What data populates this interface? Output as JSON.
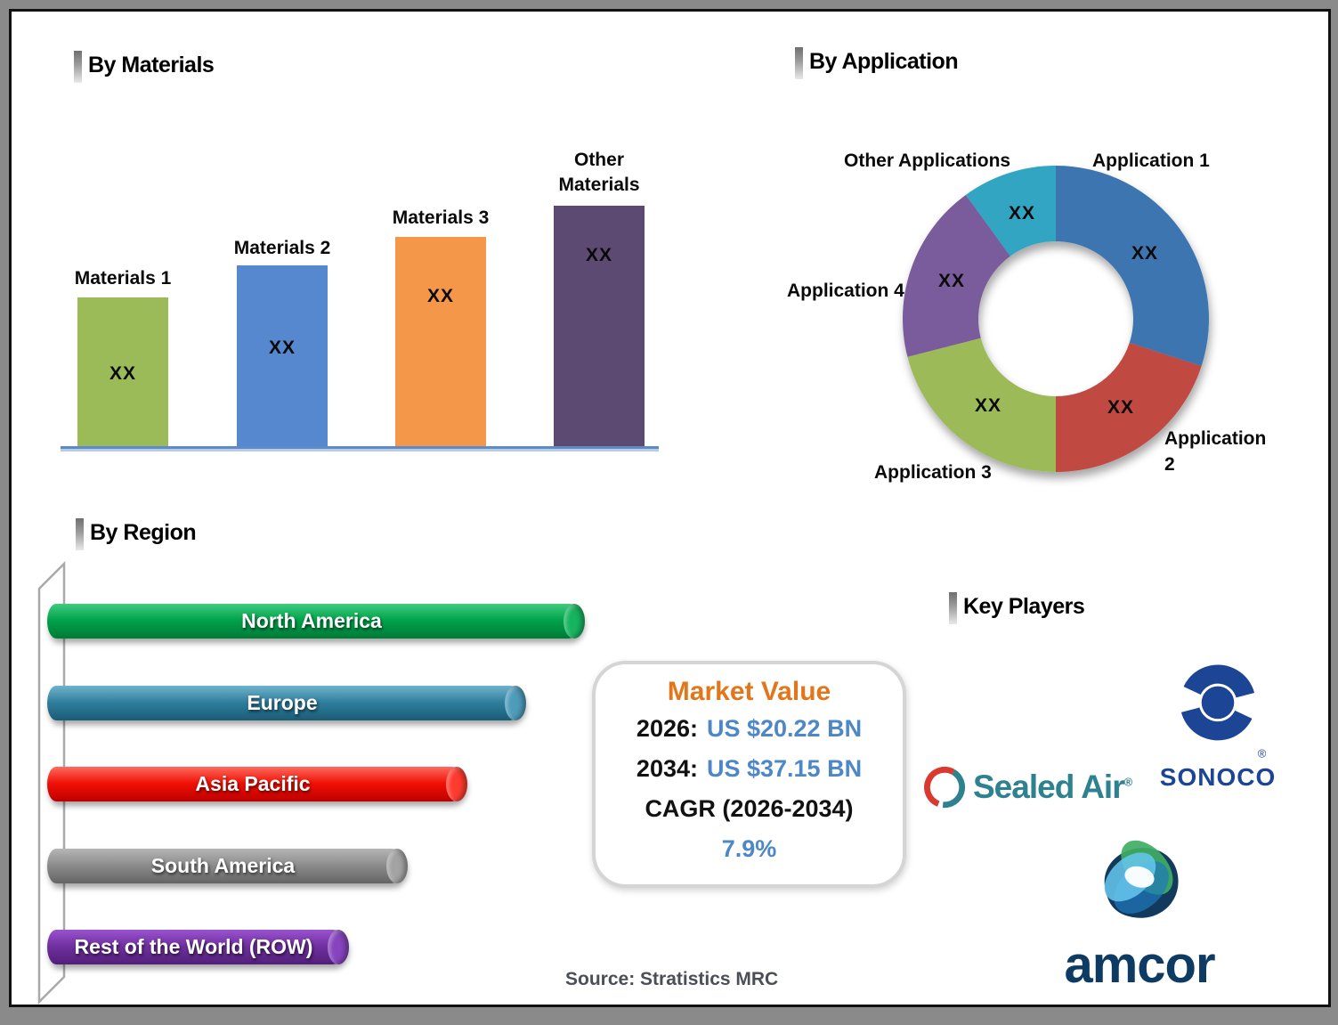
{
  "title_headers": {
    "materials": "By Materials",
    "application": "By Application",
    "region": "By Region",
    "key_players": "Key Players"
  },
  "chart_data": [
    {
      "id": "by-materials",
      "type": "bar",
      "title": "By Materials",
      "categories": [
        "Materials 1",
        "Materials 2",
        "Materials 3",
        "Other Materials"
      ],
      "data_labels": [
        "XX",
        "XX",
        "XX",
        "XX"
      ],
      "relative_heights_pct": [
        62,
        75,
        87,
        100
      ],
      "colors": [
        "#9bbb59",
        "#5588ce",
        "#f49748",
        "#5d4a73"
      ],
      "axis_line_color": "#5e8ac7",
      "grid": false,
      "legend": "none"
    },
    {
      "id": "by-application",
      "type": "pie",
      "subtype": "donut",
      "title": "By Application",
      "labels": [
        "Application 1",
        "Application 2",
        "Application 3",
        "Application 4",
        "Other Applications"
      ],
      "data_labels": [
        "XX",
        "XX",
        "XX",
        "XX",
        "XX"
      ],
      "segment_pct": [
        30,
        20,
        21,
        19,
        10
      ],
      "colors": [
        "#3e74b0",
        "#c04a43",
        "#9cbb58",
        "#7a5c9c",
        "#31a5c3"
      ],
      "inner_radius_ratio": 0.505,
      "start_angle_deg": 0,
      "legend": "outside-labels"
    },
    {
      "id": "by-region",
      "type": "bar",
      "subtype": "horizontal-cylinder",
      "title": "By Region",
      "categories": [
        "North America",
        "Europe",
        "Asia Pacific",
        "South America",
        "Rest of the World (ROW)"
      ],
      "relative_lengths_pct": [
        100,
        89,
        78,
        67,
        56
      ],
      "colors": [
        [
          "#3ecb7e",
          "#00a24a",
          "#007a37",
          "#17b45f"
        ],
        [
          "#6fb3cc",
          "#2f7e9d",
          "#1b5c75",
          "#4e9cba"
        ],
        [
          "#ff6a5e",
          "#f01005",
          "#bc0000",
          "#ff3b2f"
        ],
        [
          "#b5b5b5",
          "#8c8c8c",
          "#646464",
          "#a3a3a3"
        ],
        [
          "#9a52ce",
          "#7030a0",
          "#521f79",
          "#8744be"
        ]
      ],
      "legend": "in-bar-labels"
    }
  ],
  "market_value": {
    "title": "Market Value",
    "title_color": "#e2761b",
    "value_color": "#4e87c7",
    "year_rows": [
      {
        "label": "2026:",
        "value": "US $20.22 BN"
      },
      {
        "label": "2034:",
        "value": "US $37.15 BN"
      }
    ],
    "cagr_label": "CAGR (2026-2034)",
    "cagr_value": "7.9%"
  },
  "key_players": {
    "companies": [
      {
        "name": "Sealed Air",
        "wordmark": "Sealed Air",
        "registered": "®"
      },
      {
        "name": "Sonoco",
        "wordmark": "SONOCO",
        "registered": "®"
      },
      {
        "name": "Amcor",
        "wordmark": "amcor"
      }
    ]
  },
  "source_text": "Source: Stratistics MRC"
}
